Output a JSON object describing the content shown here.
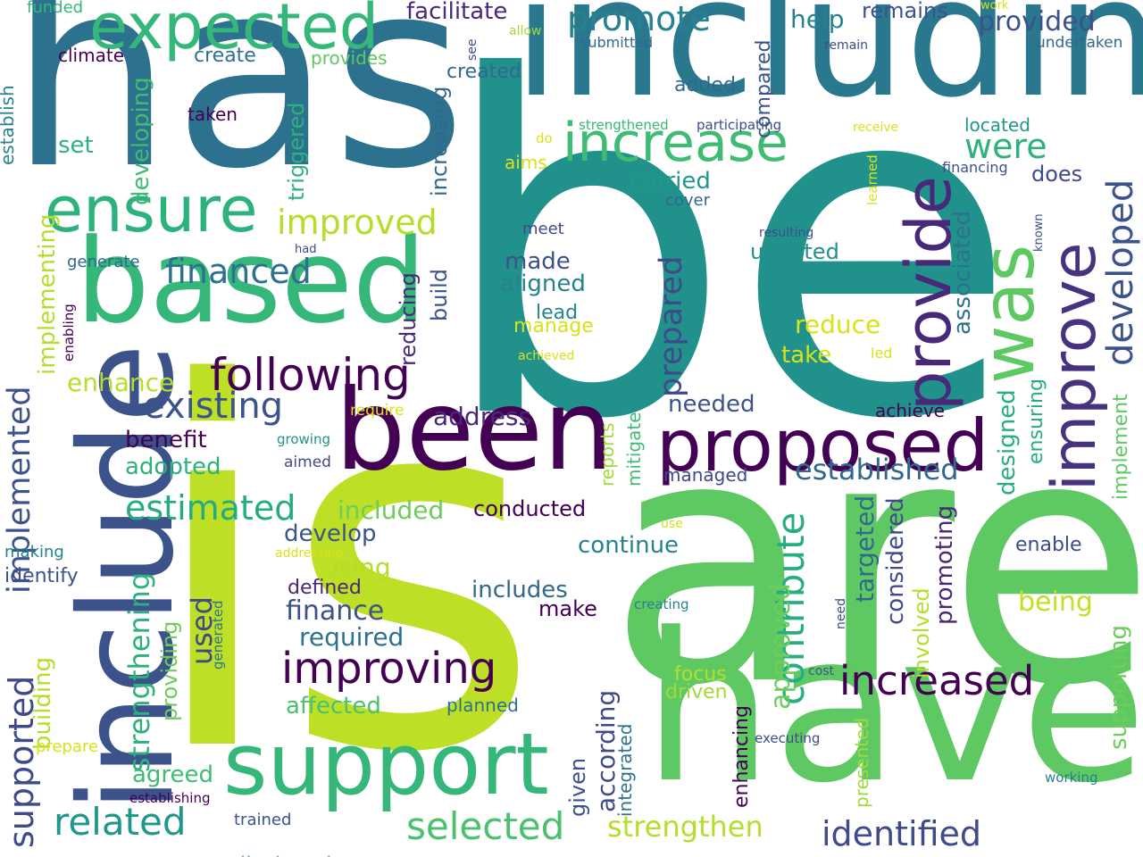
{
  "words": [
    {
      "text": "be",
      "color": "#21918c"
    },
    {
      "text": "is",
      "color": "#bddf26"
    },
    {
      "text": "are",
      "color": "#5ec962"
    },
    {
      "text": "has",
      "color": "#2c728e"
    },
    {
      "text": "including",
      "color": "#2a788e"
    },
    {
      "text": "have",
      "color": "#5ec962"
    },
    {
      "text": "been",
      "color": "#440154"
    },
    {
      "text": "include",
      "color": "#3b528b"
    },
    {
      "text": "based",
      "color": "#35b779"
    },
    {
      "text": "support",
      "color": "#35b779"
    },
    {
      "text": "proposed",
      "color": "#440154"
    },
    {
      "text": "expected",
      "color": "#35b779"
    },
    {
      "text": "increase",
      "color": "#3fbc73"
    },
    {
      "text": "ensure",
      "color": "#2db27d"
    },
    {
      "text": "was",
      "color": "#5ec962"
    },
    {
      "text": "provide",
      "color": "#482878"
    },
    {
      "text": "improve",
      "color": "#46327e"
    },
    {
      "text": "following",
      "color": "#440154"
    },
    {
      "text": "improving",
      "color": "#440154"
    },
    {
      "text": "increased",
      "color": "#440154"
    },
    {
      "text": "estimated",
      "color": "#25ab82"
    },
    {
      "text": "identified",
      "color": "#3e4a89"
    },
    {
      "text": "selected",
      "color": "#4ac16d"
    },
    {
      "text": "related",
      "color": "#1f988b"
    },
    {
      "text": "strengthen",
      "color": "#b5de2b"
    },
    {
      "text": "existing",
      "color": "#3b528b"
    },
    {
      "text": "financed",
      "color": "#2c728e"
    },
    {
      "text": "improved",
      "color": "#b5de2b"
    },
    {
      "text": "promote",
      "color": "#26828e"
    },
    {
      "text": "established",
      "color": "#31688e"
    },
    {
      "text": "were",
      "color": "#2db27d"
    },
    {
      "text": "contribute",
      "color": "#26ad81"
    },
    {
      "text": "developed",
      "color": "#3b528b"
    },
    {
      "text": "implemented",
      "color": "#3b528b"
    },
    {
      "text": "supported",
      "color": "#3e4a89"
    },
    {
      "text": "finance",
      "color": "#3b528b"
    },
    {
      "text": "address",
      "color": "#482878"
    },
    {
      "text": "required",
      "color": "#2c728e"
    },
    {
      "text": "included",
      "color": "#6ccd5a"
    },
    {
      "text": "conducted",
      "color": "#440154"
    },
    {
      "text": "prepared",
      "color": "#3e4a89"
    },
    {
      "text": "facilitate",
      "color": "#482878"
    },
    {
      "text": "provided",
      "color": "#3b528b"
    },
    {
      "text": "used",
      "color": "#3e4a89"
    },
    {
      "text": "strengthening",
      "color": "#2db27d"
    },
    {
      "text": "enhance",
      "color": "#b5de2b"
    },
    {
      "text": "help",
      "color": "#26828e"
    },
    {
      "text": "remains",
      "color": "#3b528b"
    },
    {
      "text": "compared",
      "color": "#3b528b"
    },
    {
      "text": "carried",
      "color": "#1f988b"
    },
    {
      "text": "added",
      "color": "#31688e"
    },
    {
      "text": "increasing",
      "color": "#31688e"
    },
    {
      "text": "does",
      "color": "#3e4a89"
    },
    {
      "text": "made",
      "color": "#3b528b"
    },
    {
      "text": "aligned",
      "color": "#26828e"
    },
    {
      "text": "updated",
      "color": "#21918c"
    },
    {
      "text": "reduce",
      "color": "#d8e219"
    },
    {
      "text": "take",
      "color": "#d8e219"
    },
    {
      "text": "adopted",
      "color": "#2db27d"
    },
    {
      "text": "benefit",
      "color": "#440154"
    },
    {
      "text": "develop",
      "color": "#3b528b"
    },
    {
      "text": "using",
      "color": "#b5de2b"
    },
    {
      "text": "includes",
      "color": "#31688e"
    },
    {
      "text": "make",
      "color": "#440154"
    },
    {
      "text": "continue",
      "color": "#26828e"
    },
    {
      "text": "needed",
      "color": "#3b528b"
    },
    {
      "text": "achieve",
      "color": "#440154"
    },
    {
      "text": "enable",
      "color": "#3e4a89"
    },
    {
      "text": "being",
      "color": "#c2df23"
    },
    {
      "text": "affected",
      "color": "#4ac16d"
    },
    {
      "text": "agreed",
      "color": "#3fbc73"
    },
    {
      "text": "defined",
      "color": "#482878"
    },
    {
      "text": "identify",
      "color": "#3b528b"
    },
    {
      "text": "associated",
      "color": "#2c728e"
    },
    {
      "text": "designed",
      "color": "#26ad81"
    },
    {
      "text": "targeted",
      "color": "#31688e"
    },
    {
      "text": "considered",
      "color": "#3e4a89"
    },
    {
      "text": "promoting",
      "color": "#482878"
    },
    {
      "text": "supporting",
      "color": "#6ccd5a"
    },
    {
      "text": "implementing",
      "color": "#b5de2b"
    },
    {
      "text": "involved",
      "color": "#b5de2b"
    },
    {
      "text": "approved",
      "color": "#6ccd5a"
    },
    {
      "text": "according",
      "color": "#3e4a89"
    },
    {
      "text": "given",
      "color": "#3b528b"
    },
    {
      "text": "disclosed",
      "color": "#5ec962"
    },
    {
      "text": "triggered",
      "color": "#2db27d"
    },
    {
      "text": "developing",
      "color": "#3fbc73"
    },
    {
      "text": "reducing",
      "color": "#482878"
    },
    {
      "text": "build",
      "color": "#3b528b"
    },
    {
      "text": "providing",
      "color": "#6ccd5a"
    },
    {
      "text": "building",
      "color": "#b5de2b"
    },
    {
      "text": "implement",
      "color": "#5ec962"
    },
    {
      "text": "ensuring",
      "color": "#26ad81"
    },
    {
      "text": "enhancing",
      "color": "#440154"
    },
    {
      "text": "integrated",
      "color": "#2c728e"
    },
    {
      "text": "mitigate",
      "color": "#3fbc73"
    },
    {
      "text": "reports",
      "color": "#a0da39"
    },
    {
      "text": "presented",
      "color": "#a0da39"
    },
    {
      "text": "located",
      "color": "#1f988b"
    },
    {
      "text": "focus",
      "color": "#b5de2b"
    },
    {
      "text": "driven",
      "color": "#a0da39"
    },
    {
      "text": "lead",
      "color": "#26828e"
    },
    {
      "text": "manage",
      "color": "#d8e219"
    },
    {
      "text": "aims",
      "color": "#d8e219"
    },
    {
      "text": "created",
      "color": "#31688e"
    },
    {
      "text": "create",
      "color": "#2c728e"
    },
    {
      "text": "provides",
      "color": "#5ec962"
    },
    {
      "text": "set",
      "color": "#2db27d"
    },
    {
      "text": "generate",
      "color": "#31688e"
    },
    {
      "text": "taken",
      "color": "#440154"
    },
    {
      "text": "climate",
      "color": "#440154"
    },
    {
      "text": "cover",
      "color": "#31688e"
    },
    {
      "text": "meet",
      "color": "#3e4a89"
    },
    {
      "text": "planned",
      "color": "#2c728e"
    },
    {
      "text": "trained",
      "color": "#3b528b"
    },
    {
      "text": "making",
      "color": "#26828e"
    },
    {
      "text": "prepare",
      "color": "#d8e219"
    },
    {
      "text": "establishing",
      "color": "#440154"
    },
    {
      "text": "funded",
      "color": "#35b779"
    },
    {
      "text": "establish",
      "color": "#26828e"
    },
    {
      "text": "submitted",
      "color": "#31688e"
    },
    {
      "text": "undertaken",
      "color": "#31688e"
    },
    {
      "text": "financing",
      "color": "#3b528b"
    },
    {
      "text": "managed",
      "color": "#3e4a89"
    },
    {
      "text": "require",
      "color": "#d8e219"
    },
    {
      "text": "aimed",
      "color": "#3e4a89"
    },
    {
      "text": "growing",
      "color": "#21918c"
    },
    {
      "text": "addressing",
      "color": "#d8e219"
    },
    {
      "text": "enabling",
      "color": "#440154"
    },
    {
      "text": "generated",
      "color": "#2c728e"
    },
    {
      "text": "use",
      "color": "#d8e219"
    },
    {
      "text": "creating",
      "color": "#26828e"
    },
    {
      "text": "need",
      "color": "#3e4a89"
    },
    {
      "text": "cost",
      "color": "#3b528b"
    },
    {
      "text": "executing",
      "color": "#3e4a89"
    },
    {
      "text": "working",
      "color": "#26828e"
    },
    {
      "text": "resulting",
      "color": "#3b528b"
    },
    {
      "text": "led",
      "color": "#d8e219"
    },
    {
      "text": "achieved",
      "color": "#d8e219"
    },
    {
      "text": "known",
      "color": "#3b528b"
    },
    {
      "text": "learned",
      "color": "#d8e219"
    },
    {
      "text": "receive",
      "color": "#d8e219"
    },
    {
      "text": "participating",
      "color": "#3e4a89"
    },
    {
      "text": "strengthened",
      "color": "#35b779"
    },
    {
      "text": "see",
      "color": "#3e4a89"
    },
    {
      "text": "allow",
      "color": "#a0da39"
    },
    {
      "text": "remain",
      "color": "#3e4a89"
    },
    {
      "text": "work",
      "color": "#d8e219"
    },
    {
      "text": "do",
      "color": "#d8e219"
    },
    {
      "text": "had",
      "color": "#3e4a89"
    }
  ]
}
